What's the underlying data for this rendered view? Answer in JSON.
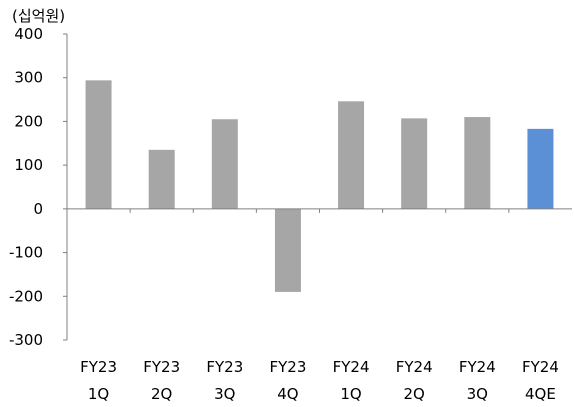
{
  "chart_data": {
    "type": "bar",
    "unit": "(십억원)",
    "categories": [
      [
        "FY23",
        "1Q"
      ],
      [
        "FY23",
        "2Q"
      ],
      [
        "FY23",
        "3Q"
      ],
      [
        "FY23",
        "4Q"
      ],
      [
        "FY24",
        "1Q"
      ],
      [
        "FY24",
        "2Q"
      ],
      [
        "FY24",
        "3Q"
      ],
      [
        "FY24",
        "4QE"
      ]
    ],
    "values": [
      294,
      135,
      205,
      -190,
      246,
      207,
      210,
      183
    ],
    "estimate_index": 7,
    "ylim": [
      -300,
      400
    ],
    "yticks": [
      "400",
      "300",
      "200",
      "100",
      "0",
      "-100",
      "-200",
      "-300"
    ],
    "colors": {
      "actual": "#a6a6a6",
      "estimate": "#5b8fd6",
      "axis": "#808080"
    }
  }
}
